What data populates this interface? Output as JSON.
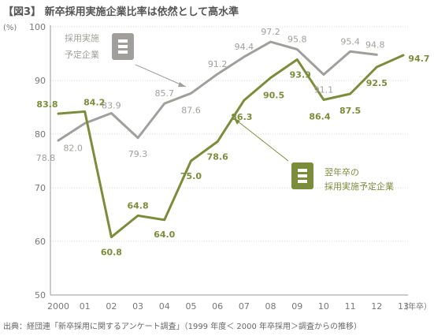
{
  "chart_data": {
    "type": "line",
    "title": "【図3】 新卒採用実施企業比率は依然として高水準",
    "source": "出典：経団連「新卒採用に関するアンケート調査」（1999 年度＜ 2000 年卒採用＞調査からの推移）",
    "y_unit": "(%)",
    "x_unit": "（年卒）",
    "categories": [
      "2000",
      "01",
      "02",
      "03",
      "04",
      "05",
      "06",
      "07",
      "08",
      "09",
      "10",
      "11",
      "12",
      "13"
    ],
    "ylim": [
      50,
      100
    ],
    "yticks": [
      50,
      60,
      70,
      80,
      90,
      100
    ],
    "series": [
      {
        "name": "採用実施予定企業",
        "legend_lines": [
          "採用実施",
          "予定企業"
        ],
        "color": "#a09f9b",
        "values": [
          78.8,
          82.0,
          83.9,
          79.3,
          85.7,
          87.6,
          91.2,
          94.4,
          97.2,
          95.8,
          91.1,
          95.4,
          94.8,
          null
        ]
      },
      {
        "name": "翌年卒の採用実施予定企業",
        "legend_lines": [
          "翌年卒の",
          "採用実施予定企業"
        ],
        "color": "#7b8c3b",
        "values": [
          83.8,
          84.2,
          60.8,
          64.8,
          64.0,
          75.0,
          78.6,
          86.3,
          90.5,
          93.9,
          86.4,
          87.5,
          92.5,
          94.7
        ]
      }
    ]
  }
}
